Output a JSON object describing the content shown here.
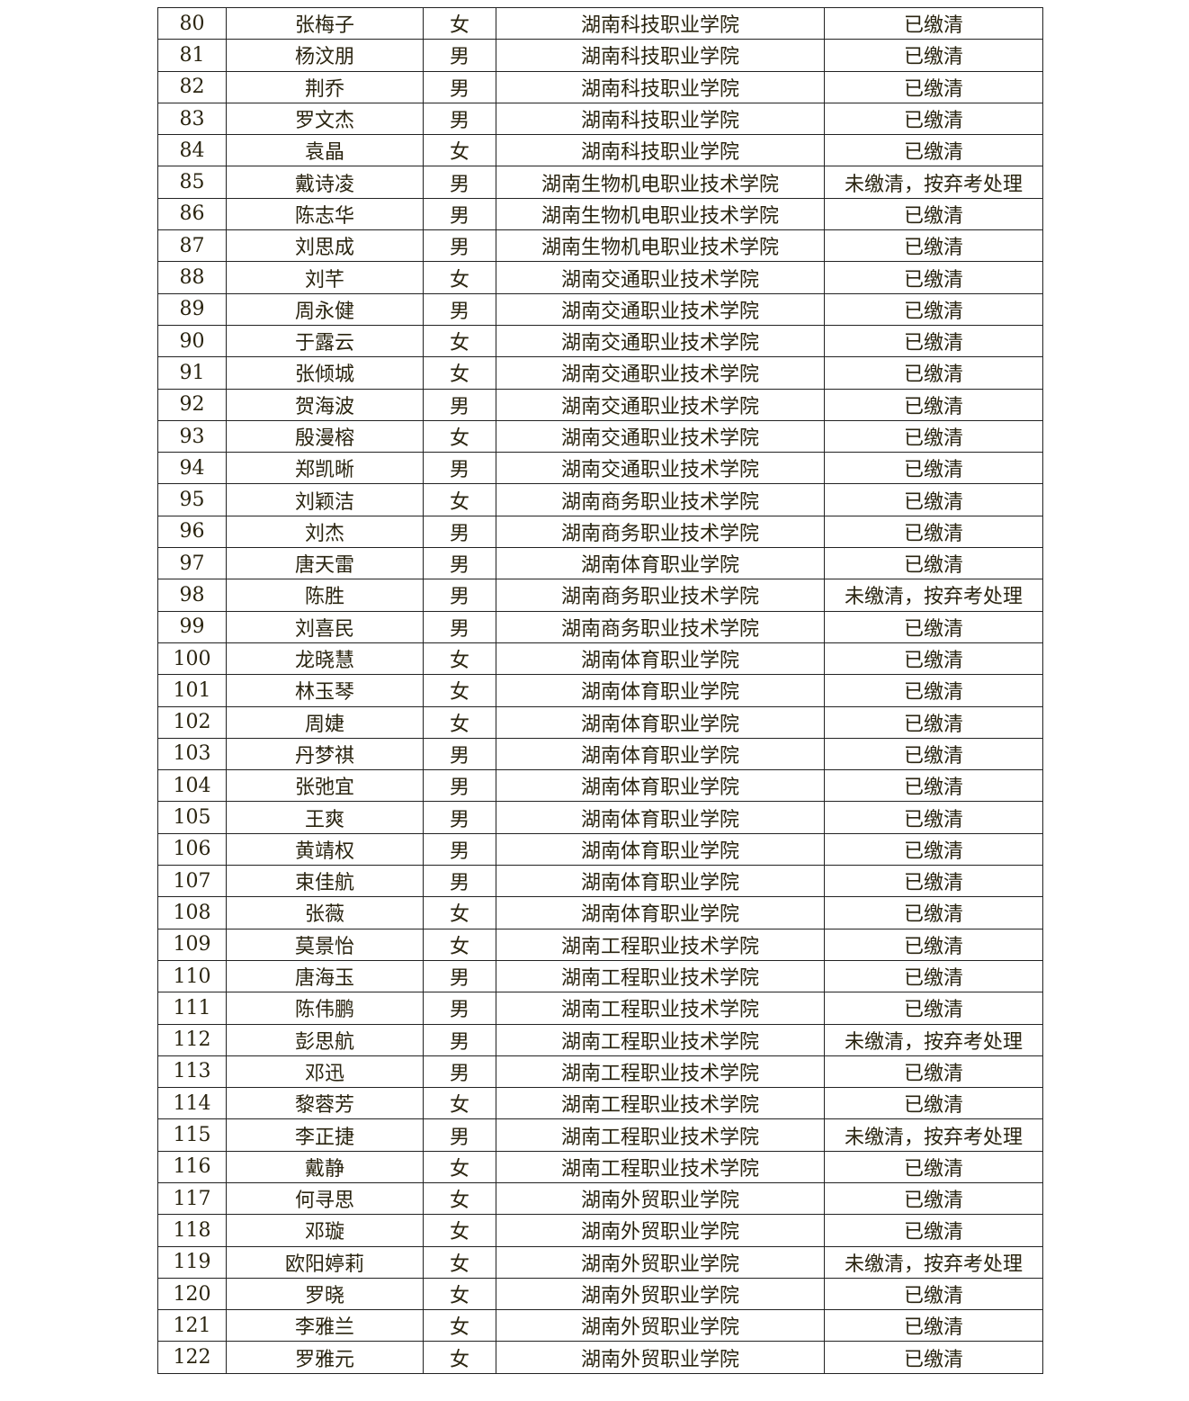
{
  "table": {
    "rows": [
      [
        "80",
        "张梅子",
        "女",
        "湖南科技职业学院",
        "已缴清"
      ],
      [
        "81",
        "杨汶朋",
        "男",
        "湖南科技职业学院",
        "已缴清"
      ],
      [
        "82",
        "荆乔",
        "男",
        "湖南科技职业学院",
        "已缴清"
      ],
      [
        "83",
        "罗文杰",
        "男",
        "湖南科技职业学院",
        "已缴清"
      ],
      [
        "84",
        "袁晶",
        "女",
        "湖南科技职业学院",
        "已缴清"
      ],
      [
        "85",
        "戴诗凌",
        "男",
        "湖南生物机电职业技术学院",
        "未缴清，按弃考处理"
      ],
      [
        "86",
        "陈志华",
        "男",
        "湖南生物机电职业技术学院",
        "已缴清"
      ],
      [
        "87",
        "刘思成",
        "男",
        "湖南生物机电职业技术学院",
        "已缴清"
      ],
      [
        "88",
        "刘芊",
        "女",
        "湖南交通职业技术学院",
        "已缴清"
      ],
      [
        "89",
        "周永健",
        "男",
        "湖南交通职业技术学院",
        "已缴清"
      ],
      [
        "90",
        "于露云",
        "女",
        "湖南交通职业技术学院",
        "已缴清"
      ],
      [
        "91",
        "张倾城",
        "女",
        "湖南交通职业技术学院",
        "已缴清"
      ],
      [
        "92",
        "贺海波",
        "男",
        "湖南交通职业技术学院",
        "已缴清"
      ],
      [
        "93",
        "殷漫榕",
        "女",
        "湖南交通职业技术学院",
        "已缴清"
      ],
      [
        "94",
        "郑凯晰",
        "男",
        "湖南交通职业技术学院",
        "已缴清"
      ],
      [
        "95",
        "刘颖洁",
        "女",
        "湖南商务职业技术学院",
        "已缴清"
      ],
      [
        "96",
        "刘杰",
        "男",
        "湖南商务职业技术学院",
        "已缴清"
      ],
      [
        "97",
        "唐天雷",
        "男",
        "湖南体育职业学院",
        "已缴清"
      ],
      [
        "98",
        "陈胜",
        "男",
        "湖南商务职业技术学院",
        "未缴清，按弃考处理"
      ],
      [
        "99",
        "刘喜民",
        "男",
        "湖南商务职业技术学院",
        "已缴清"
      ],
      [
        "100",
        "龙晓慧",
        "女",
        "湖南体育职业学院",
        "已缴清"
      ],
      [
        "101",
        "林玉琴",
        "女",
        "湖南体育职业学院",
        "已缴清"
      ],
      [
        "102",
        "周婕",
        "女",
        "湖南体育职业学院",
        "已缴清"
      ],
      [
        "103",
        "丹梦祺",
        "男",
        "湖南体育职业学院",
        "已缴清"
      ],
      [
        "104",
        "张弛宜",
        "男",
        "湖南体育职业学院",
        "已缴清"
      ],
      [
        "105",
        "王爽",
        "男",
        "湖南体育职业学院",
        "已缴清"
      ],
      [
        "106",
        "黄靖权",
        "男",
        "湖南体育职业学院",
        "已缴清"
      ],
      [
        "107",
        "束佳航",
        "男",
        "湖南体育职业学院",
        "已缴清"
      ],
      [
        "108",
        "张薇",
        "女",
        "湖南体育职业学院",
        "已缴清"
      ],
      [
        "109",
        "莫景怡",
        "女",
        "湖南工程职业技术学院",
        "已缴清"
      ],
      [
        "110",
        "唐海玉",
        "男",
        "湖南工程职业技术学院",
        "已缴清"
      ],
      [
        "111",
        "陈伟鹏",
        "男",
        "湖南工程职业技术学院",
        "已缴清"
      ],
      [
        "112",
        "彭思航",
        "男",
        "湖南工程职业技术学院",
        "未缴清，按弃考处理"
      ],
      [
        "113",
        "邓迅",
        "男",
        "湖南工程职业技术学院",
        "已缴清"
      ],
      [
        "114",
        "黎蓉芳",
        "女",
        "湖南工程职业技术学院",
        "已缴清"
      ],
      [
        "115",
        "李正捷",
        "男",
        "湖南工程职业技术学院",
        "未缴清，按弃考处理"
      ],
      [
        "116",
        "戴静",
        "女",
        "湖南工程职业技术学院",
        "已缴清"
      ],
      [
        "117",
        "何寻思",
        "女",
        "湖南外贸职业学院",
        "已缴清"
      ],
      [
        "118",
        "邓璇",
        "女",
        "湖南外贸职业学院",
        "已缴清"
      ],
      [
        "119",
        "欧阳婷莉",
        "女",
        "湖南外贸职业学院",
        "未缴清，按弃考处理"
      ],
      [
        "120",
        "罗晓",
        "女",
        "湖南外贸职业学院",
        "已缴清"
      ],
      [
        "121",
        "李雅兰",
        "女",
        "湖南外贸职业学院",
        "已缴清"
      ],
      [
        "122",
        "罗雅元",
        "女",
        "湖南外贸职业学院",
        "已缴清"
      ]
    ]
  }
}
